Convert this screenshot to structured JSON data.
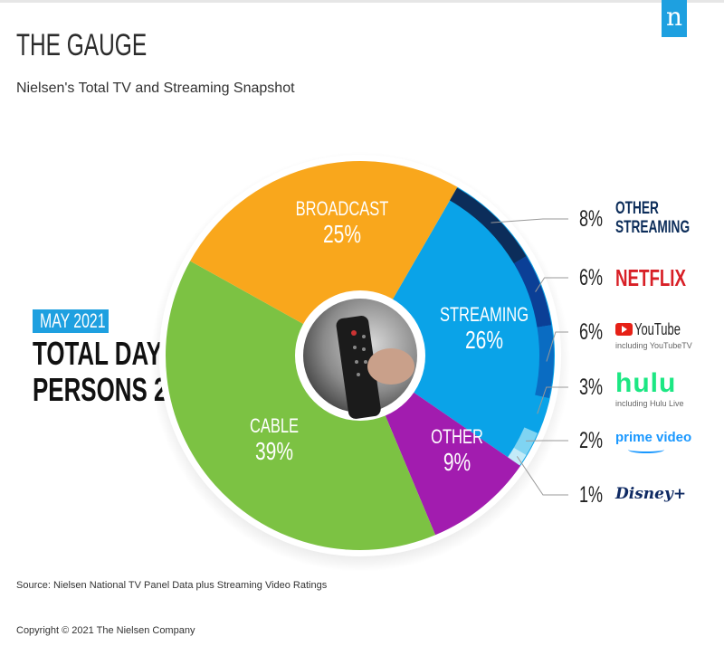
{
  "header": {
    "title": "THE GAUGE",
    "subtitle": "Nielsen's Total TV and Streaming Snapshot",
    "logo": "n"
  },
  "left_label": {
    "badge": "MAY 2021",
    "line1": "TOTAL DAY",
    "line2": "PERSONS 2+"
  },
  "chart_data": {
    "type": "pie",
    "subtype": "donut",
    "slices": [
      {
        "name": "STREAMING",
        "value": 26,
        "label": "26%",
        "color": "#0aa3e8"
      },
      {
        "name": "OTHER",
        "value": 9,
        "label": "9%",
        "color": "#a21caf"
      },
      {
        "name": "CABLE",
        "value": 39,
        "label": "39%",
        "color": "#7cc243"
      },
      {
        "name": "BROADCAST",
        "value": 25,
        "label": "25%",
        "color": "#f9a71c"
      }
    ],
    "streaming_breakdown": [
      {
        "name": "OTHER STREAMING",
        "value": 8,
        "label": "8%",
        "color": "#0c2d5a"
      },
      {
        "name": "NETFLIX",
        "value": 6,
        "label": "6%",
        "color": "#0b3f96"
      },
      {
        "name": "YouTube",
        "note": "including YouTubeTV",
        "value": 6,
        "label": "6%",
        "color": "#0a6cc2"
      },
      {
        "name": "hulu",
        "note": "including Hulu Live",
        "value": 3,
        "label": "3%",
        "color": "#0aa3e8"
      },
      {
        "name": "prime video",
        "value": 2,
        "label": "2%",
        "color": "#7fd4f2"
      },
      {
        "name": "Disney+",
        "value": 1,
        "label": "1%",
        "color": "#c2ebf8"
      }
    ]
  },
  "footer": {
    "source": "Source: Nielsen National TV Panel Data plus Streaming Video Ratings",
    "copyright": "Copyright © 2021 The Nielsen Company"
  }
}
